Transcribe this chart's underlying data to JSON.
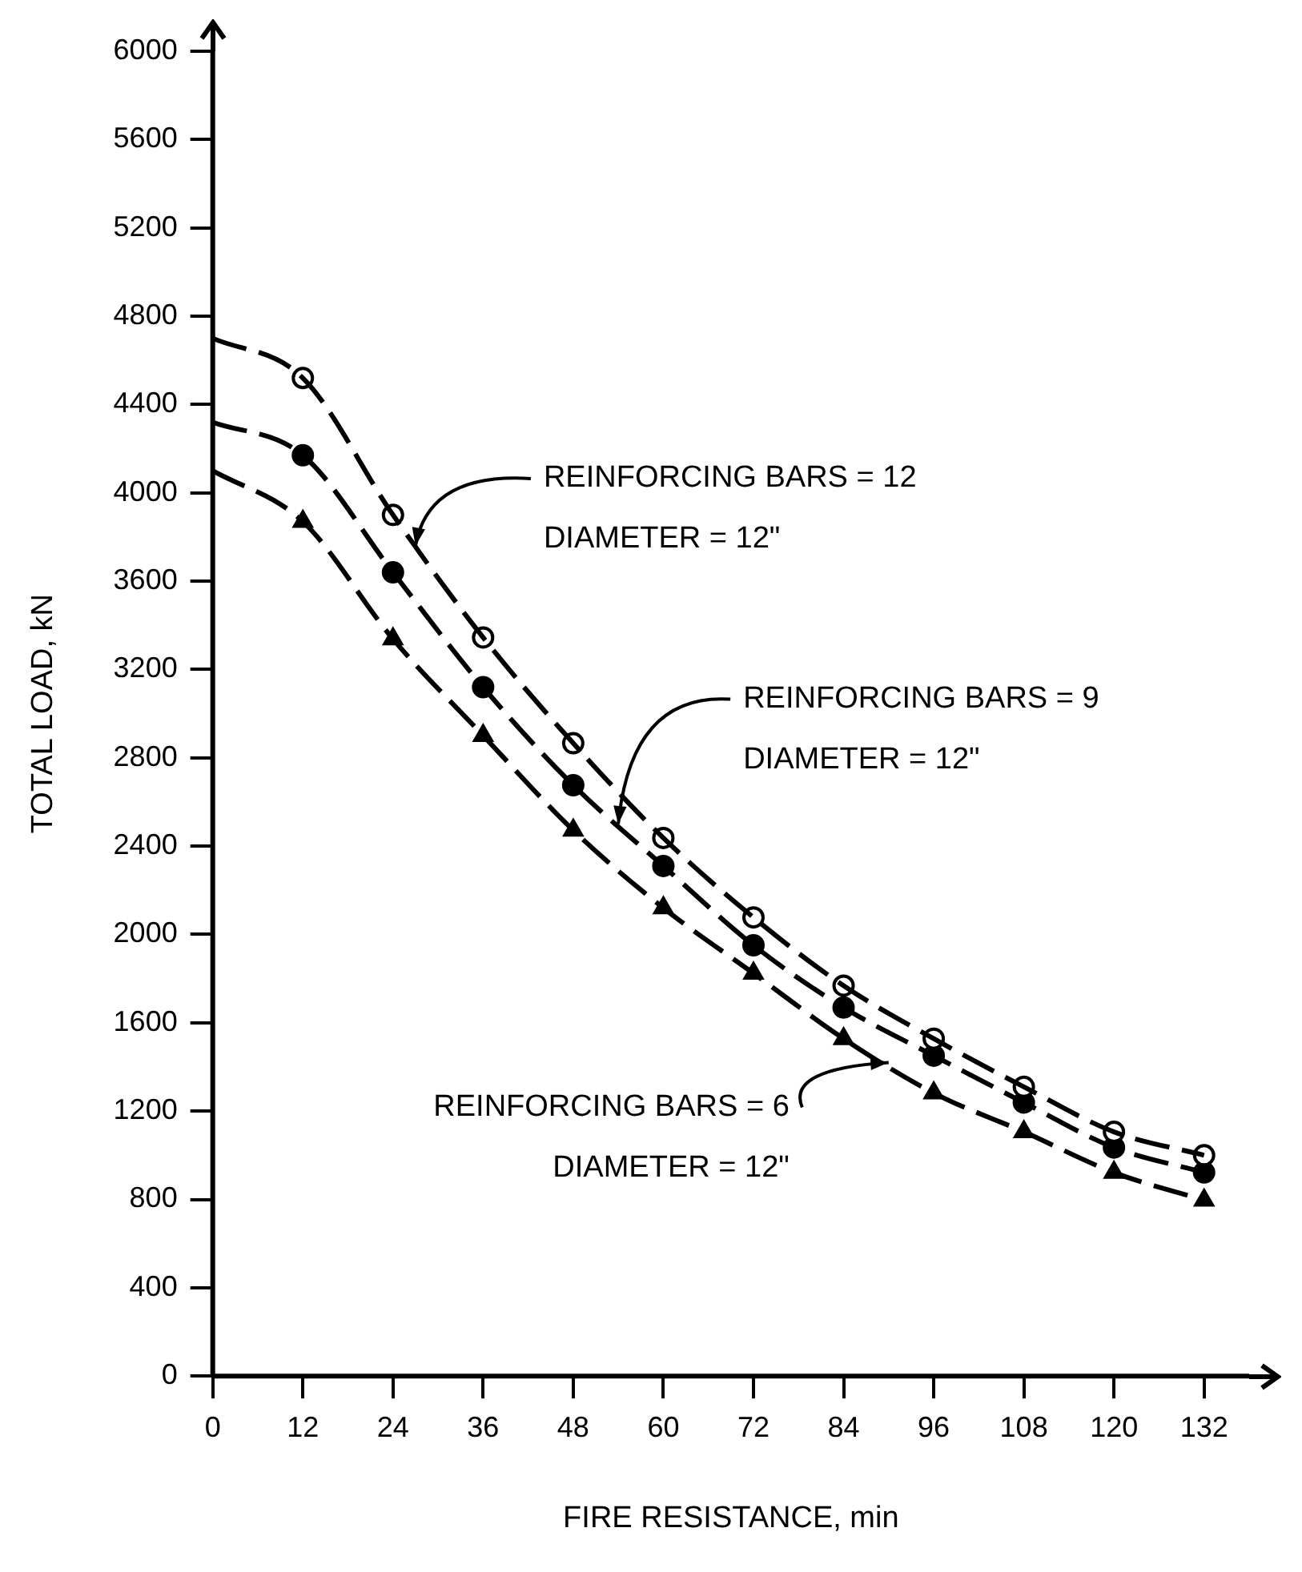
{
  "chart_data": {
    "type": "scatter",
    "xlabel": "FIRE RESISTANCE, min",
    "ylabel": "TOTAL LOAD, kN",
    "xlim": [
      0,
      138
    ],
    "xticks": [
      0,
      12,
      24,
      36,
      48,
      60,
      72,
      84,
      96,
      108,
      120,
      132
    ],
    "ylim": [
      0,
      6000
    ],
    "yticks": [
      0,
      400,
      800,
      1200,
      1600,
      2000,
      2400,
      2800,
      3200,
      3600,
      4000,
      4400,
      4800,
      5200,
      5600,
      6000
    ],
    "grid": false,
    "legend": false,
    "series": [
      {
        "type": "line",
        "color": "#000000",
        "line_style": "dashed",
        "marker": "none",
        "x": [
          0,
          12,
          24,
          36,
          48,
          60,
          72,
          84,
          96,
          108,
          120,
          132
        ],
        "values": [
          4700,
          4520,
          3900,
          3345,
          2866,
          2437,
          2077,
          1768,
          1528,
          1310,
          1106,
          1000
        ]
      },
      {
        "type": "line",
        "color": "#000000",
        "line_style": "dashed",
        "marker": "none",
        "x": [
          0,
          12,
          24,
          36,
          48,
          60,
          72,
          84,
          96,
          108,
          120,
          132
        ],
        "values": [
          4320,
          4170,
          3640,
          3120,
          2676,
          2310,
          1951,
          1669,
          1451,
          1239,
          1035,
          922
        ]
      },
      {
        "type": "line",
        "color": "#000000",
        "line_style": "dashed",
        "marker": "none",
        "x": [
          0,
          12,
          24,
          36,
          48,
          60,
          72,
          84,
          96,
          108,
          120,
          132
        ],
        "values": [
          4100,
          3870,
          3338,
          2901,
          2472,
          2120,
          1824,
          1528,
          1282,
          1106,
          922,
          796
        ]
      },
      {
        "type": "scatter",
        "color": "#ffffff",
        "marker": "circle",
        "x": [
          12,
          24,
          36,
          48,
          60,
          72,
          84,
          96,
          108,
          120,
          132
        ],
        "values": [
          4520,
          3900,
          3345,
          2866,
          2437,
          2077,
          1768,
          1528,
          1310,
          1106,
          1000
        ]
      },
      {
        "type": "scatter",
        "color": "#000000",
        "marker": "circle",
        "x": [
          12,
          24,
          36,
          48,
          60,
          72,
          84,
          96,
          108,
          120,
          132
        ],
        "values": [
          4170,
          3640,
          3120,
          2676,
          2310,
          1951,
          1669,
          1451,
          1239,
          1035,
          922
        ]
      },
      {
        "type": "scatter",
        "color": "#000000",
        "marker": "triangle",
        "x": [
          12,
          24,
          36,
          48,
          60,
          72,
          84,
          96,
          108,
          120,
          132
        ],
        "values": [
          3870,
          3338,
          2901,
          2472,
          2120,
          1824,
          1528,
          1282,
          1106,
          922,
          796
        ]
      }
    ],
    "annotations": [
      {
        "text": "REINFORCING BARS = 12\nDIAMETER = 12\"",
        "x": 27,
        "y": 3760
      },
      {
        "text": "REINFORCING BARS = 9\nDIAMETER = 12\"",
        "x": 54,
        "y": 2500
      },
      {
        "text": "REINFORCING BARS = 6\nDIAMETER = 12\"",
        "x": 90,
        "y": 1420
      }
    ]
  }
}
